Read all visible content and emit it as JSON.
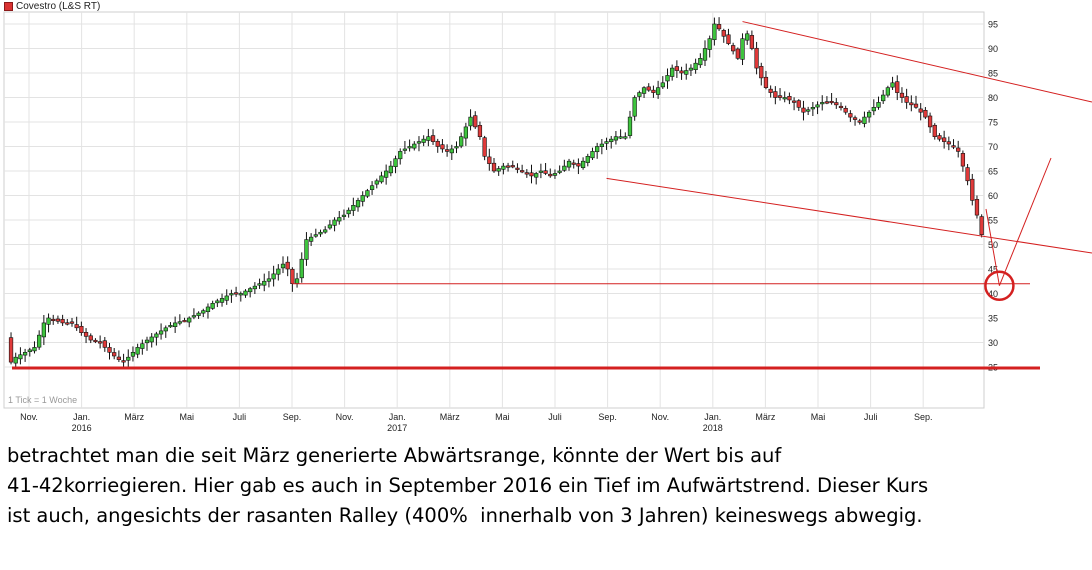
{
  "chart_data": {
    "type": "candlestick",
    "title": "Covestro (L&S RT)",
    "note": "1 Tick = 1 Woche",
    "ylim": [
      23,
      98
    ],
    "y_axis_side": "right",
    "y_ticks": [
      25,
      30,
      35,
      40,
      45,
      50,
      55,
      60,
      65,
      70,
      75,
      80,
      85,
      90,
      95
    ],
    "x_ticks": [
      {
        "label": "Nov.",
        "sub": ""
      },
      {
        "label": "Jan.",
        "sub": "2016"
      },
      {
        "label": "März",
        "sub": ""
      },
      {
        "label": "Mai",
        "sub": ""
      },
      {
        "label": "Juli",
        "sub": ""
      },
      {
        "label": "Sep.",
        "sub": ""
      },
      {
        "label": "Nov.",
        "sub": ""
      },
      {
        "label": "Jan.",
        "sub": "2017"
      },
      {
        "label": "März",
        "sub": ""
      },
      {
        "label": "Mai",
        "sub": ""
      },
      {
        "label": "Juli",
        "sub": ""
      },
      {
        "label": "Sep.",
        "sub": ""
      },
      {
        "label": "Nov.",
        "sub": ""
      },
      {
        "label": "Jan.",
        "sub": "2018"
      },
      {
        "label": "März",
        "sub": ""
      },
      {
        "label": "Mai",
        "sub": ""
      },
      {
        "label": "Juli",
        "sub": ""
      },
      {
        "label": "Sep.",
        "sub": ""
      }
    ],
    "close_path": [
      [
        0,
        31
      ],
      [
        1,
        26
      ],
      [
        2,
        27
      ],
      [
        4,
        28
      ],
      [
        6,
        29
      ],
      [
        8,
        34
      ],
      [
        9,
        35
      ],
      [
        12,
        34
      ],
      [
        14,
        34
      ],
      [
        16,
        32
      ],
      [
        18,
        30.5
      ],
      [
        20,
        30
      ],
      [
        22,
        28
      ],
      [
        24,
        26.5
      ],
      [
        25,
        26
      ],
      [
        26,
        27
      ],
      [
        28,
        29
      ],
      [
        30,
        30.5
      ],
      [
        34,
        33
      ],
      [
        36,
        34
      ],
      [
        38,
        34.5
      ],
      [
        40,
        35.5
      ],
      [
        42,
        36.5
      ],
      [
        44,
        38
      ],
      [
        46,
        39
      ],
      [
        48,
        40
      ],
      [
        50,
        40
      ],
      [
        52,
        41
      ],
      [
        54,
        42
      ],
      [
        56,
        43
      ],
      [
        58,
        45
      ],
      [
        59,
        46
      ],
      [
        60,
        45
      ],
      [
        61,
        42
      ],
      [
        62,
        43
      ],
      [
        63,
        47
      ],
      [
        64,
        51
      ],
      [
        66,
        52
      ],
      [
        68,
        53
      ],
      [
        70,
        55
      ],
      [
        72,
        56
      ],
      [
        74,
        58
      ],
      [
        76,
        60
      ],
      [
        78,
        62
      ],
      [
        80,
        64
      ],
      [
        82,
        66
      ],
      [
        84,
        69
      ],
      [
        86,
        70
      ],
      [
        88,
        71
      ],
      [
        90,
        72
      ],
      [
        92,
        70
      ],
      [
        94,
        69
      ],
      [
        96,
        70
      ],
      [
        98,
        74
      ],
      [
        99,
        76
      ],
      [
        100,
        74
      ],
      [
        101,
        72
      ],
      [
        102,
        68
      ],
      [
        104,
        65
      ],
      [
        106,
        66
      ],
      [
        108,
        66
      ],
      [
        110,
        65
      ],
      [
        112,
        64
      ],
      [
        114,
        65
      ],
      [
        116,
        64
      ],
      [
        118,
        65
      ],
      [
        120,
        67
      ],
      [
        122,
        66
      ],
      [
        124,
        68
      ],
      [
        126,
        70
      ],
      [
        128,
        71
      ],
      [
        130,
        72
      ],
      [
        132,
        72
      ],
      [
        134,
        80
      ],
      [
        136,
        82
      ],
      [
        138,
        81
      ],
      [
        140,
        83
      ],
      [
        142,
        86
      ],
      [
        144,
        85
      ],
      [
        146,
        86
      ],
      [
        148,
        88
      ],
      [
        150,
        92
      ],
      [
        151,
        95
      ],
      [
        152,
        94
      ],
      [
        154,
        91
      ],
      [
        156,
        88
      ],
      [
        157,
        92
      ],
      [
        158,
        93
      ],
      [
        159,
        90
      ],
      [
        160,
        86
      ],
      [
        162,
        82
      ],
      [
        164,
        80
      ],
      [
        166,
        80
      ],
      [
        168,
        79
      ],
      [
        170,
        77
      ],
      [
        172,
        78
      ],
      [
        174,
        79
      ],
      [
        176,
        79
      ],
      [
        178,
        78
      ],
      [
        180,
        76
      ],
      [
        182,
        75
      ],
      [
        184,
        77
      ],
      [
        186,
        79
      ],
      [
        188,
        82
      ],
      [
        189,
        83
      ],
      [
        190,
        81
      ],
      [
        192,
        79
      ],
      [
        194,
        78
      ],
      [
        196,
        76
      ],
      [
        198,
        72
      ],
      [
        200,
        71
      ],
      [
        202,
        70
      ],
      [
        203,
        69
      ],
      [
        204,
        66
      ],
      [
        205,
        63
      ],
      [
        206,
        59
      ],
      [
        207,
        56
      ],
      [
        208,
        52
      ]
    ],
    "annotations": {
      "support_lines": [
        25,
        42
      ],
      "downtrend_upper": [
        [
          157,
          95.5
        ],
        [
          220,
          74.8
        ]
      ],
      "downtrend_lower": [
        [
          128,
          63.5
        ],
        [
          220,
          38.0
        ]
      ],
      "target_circle": {
        "x": 212,
        "y": 42
      }
    },
    "colors": {
      "up": "#3ec43e",
      "down": "#e03a3a",
      "annotation": "#d42020",
      "grid": "#e3e3e3"
    }
  },
  "caption": "betrachtet man die seit März generierte Abwärtsrange, könnte der Wert bis auf\n41-42korriegieren. Hier gab es auch in September 2016 ein Tief im Aufwärtstrend. Dieser Kurs\nist auch, angesichts der rasanten Ralley (400%  innerhalb von 3 Jahren) keineswegs abwegig."
}
